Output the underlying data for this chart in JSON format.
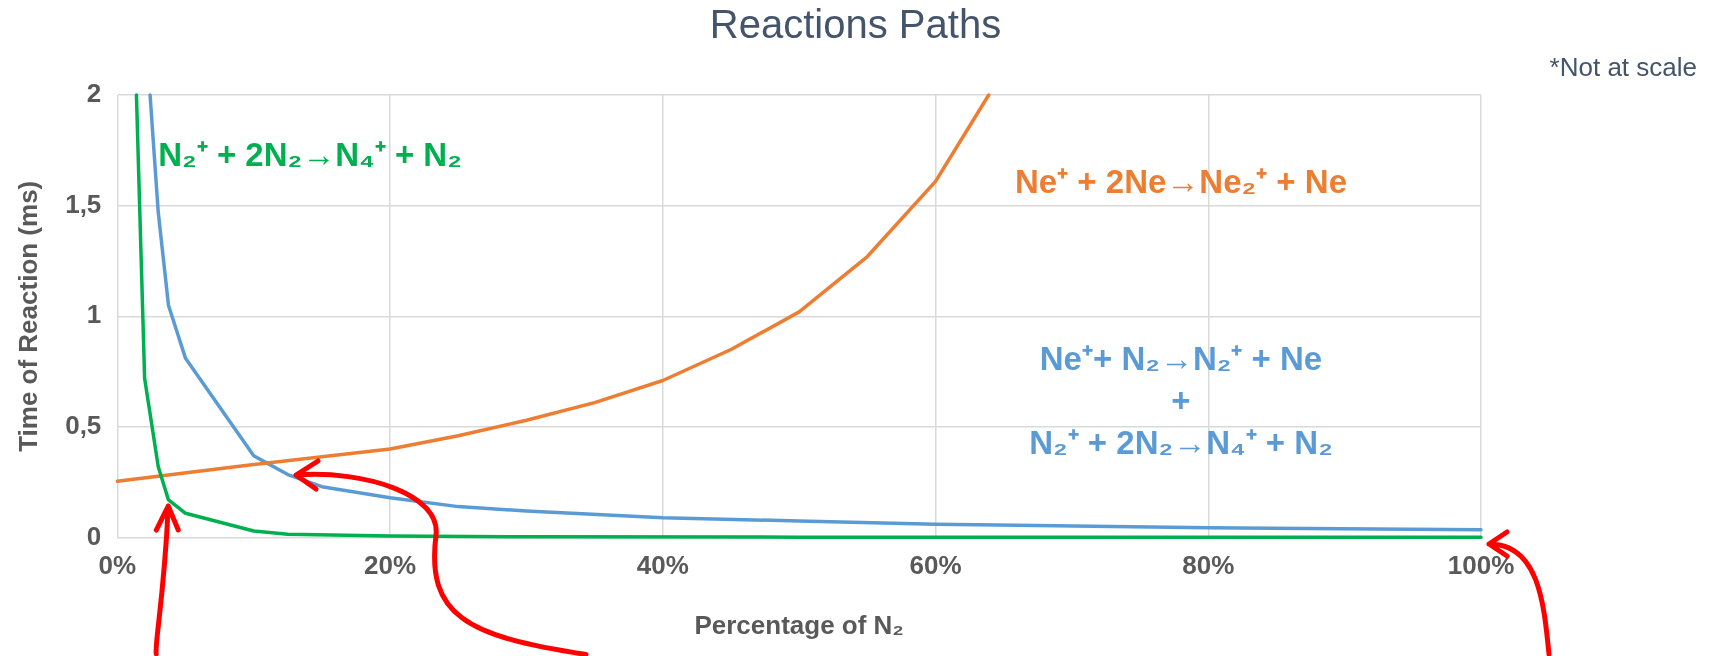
{
  "chart_data": {
    "type": "line",
    "title": "Reactions Paths",
    "xlabel": "Percentage of N₂",
    "ylabel": "Time of Reaction (ms)",
    "xlim": [
      0,
      100
    ],
    "ylim": [
      0,
      2
    ],
    "xticks": [
      {
        "value": 0,
        "label": "0%"
      },
      {
        "value": 20,
        "label": "20%"
      },
      {
        "value": 40,
        "label": "40%"
      },
      {
        "value": 60,
        "label": "60%"
      },
      {
        "value": 80,
        "label": "80%"
      },
      {
        "value": 100,
        "label": "100%"
      }
    ],
    "yticks": [
      0,
      {
        "value": 0.5,
        "label": "0,5"
      },
      1,
      {
        "value": 1.5,
        "label": "1,5"
      },
      2
    ],
    "grid": true,
    "legend": false,
    "marker": "none",
    "line_style": "solid",
    "annotations": [
      "*Not at scale"
    ],
    "series": [
      {
        "name": "N₂⁺ + 2N₂→N₄⁺ + N₂",
        "color": "#00b050",
        "x": [
          1.4,
          2,
          3,
          3.75,
          5,
          10,
          12.5,
          20,
          30,
          50,
          100
        ],
        "values": [
          2,
          0.72,
          0.32,
          0.17,
          0.11,
          0.03,
          0.015,
          0.007,
          0.004,
          0.002,
          0.002
        ]
      },
      {
        "name": "Ne⁺ + 2Ne→Ne₂⁺ + Ne",
        "color": "#ed7d31",
        "x": [
          0,
          10,
          20,
          25,
          30,
          35,
          40,
          45,
          50,
          55,
          60,
          63.9
        ],
        "values": [
          0.255,
          0.33,
          0.4,
          0.46,
          0.53,
          0.61,
          0.71,
          0.85,
          1.02,
          1.27,
          1.61,
          2
        ]
      },
      {
        "name": "Ne⁺+ N₂→N₂⁺ + Ne\n+\nN₂⁺ + 2N₂→N₄⁺ + N₂",
        "color": "#5b9bd5",
        "x": [
          2.4,
          3,
          3.75,
          5,
          10,
          12.5,
          15,
          20,
          25,
          30,
          40,
          50,
          60,
          80,
          100
        ],
        "values": [
          2,
          1.47,
          1.05,
          0.81,
          0.37,
          0.285,
          0.23,
          0.18,
          0.14,
          0.12,
          0.09,
          0.075,
          0.06,
          0.045,
          0.035
        ]
      }
    ]
  }
}
